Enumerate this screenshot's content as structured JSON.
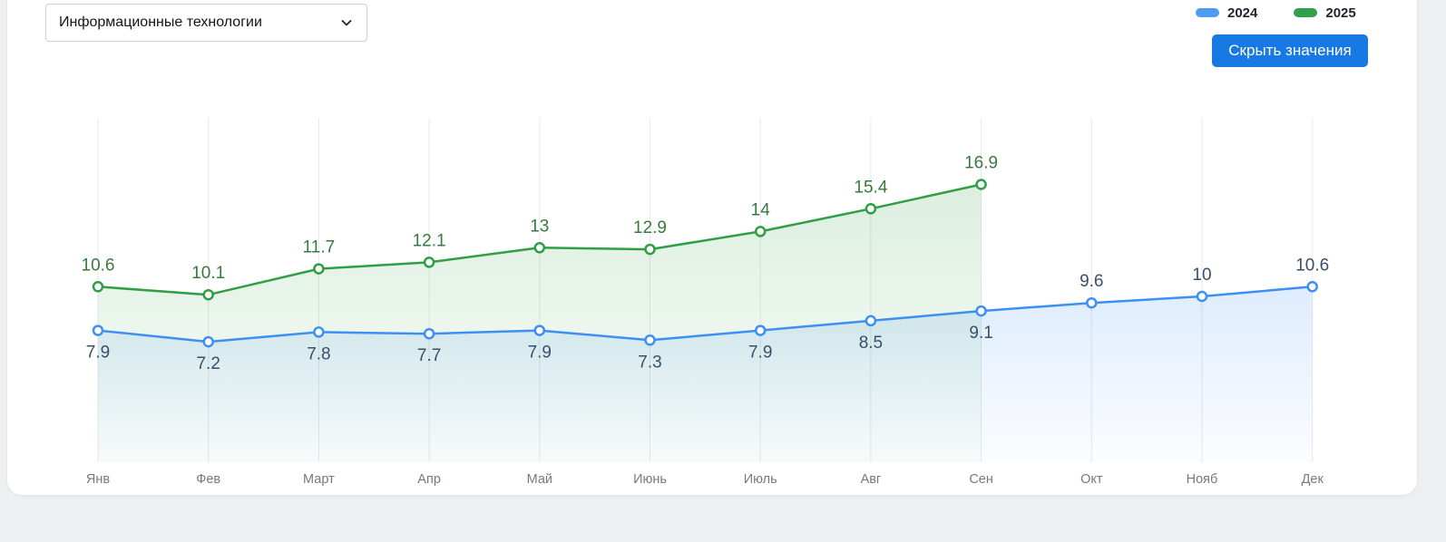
{
  "controls": {
    "category_select": {
      "value": "Информационные технологии"
    },
    "hide_values_button": "Скрыть значения"
  },
  "legend": [
    {
      "label": "2024",
      "color": "#4a9df2"
    },
    {
      "label": "2025",
      "color": "#31a04a"
    }
  ],
  "chart_data": {
    "type": "line",
    "title": "",
    "xlabel": "",
    "ylabel": "",
    "categories": [
      "Янв",
      "Фев",
      "Март",
      "Апр",
      "Май",
      "Июнь",
      "Июль",
      "Авг",
      "Сен",
      "Окт",
      "Нояб",
      "Дек"
    ],
    "series": [
      {
        "name": "2024",
        "color": "#3d8ff2",
        "label_color": "#37516b",
        "labels_above_from": 9,
        "values": [
          7.9,
          7.2,
          7.8,
          7.7,
          7.9,
          7.3,
          7.9,
          8.5,
          9.1,
          9.6,
          10,
          10.6
        ]
      },
      {
        "name": "2025",
        "color": "#2f9e44",
        "label_color": "#367a3f",
        "labels_above_from": 0,
        "values": [
          10.6,
          10.1,
          11.7,
          12.1,
          13,
          12.9,
          14,
          15.4,
          16.9
        ]
      }
    ],
    "ylim": [
      0,
      21
    ],
    "grid": "vertical-only",
    "legend_position": "top-right",
    "axis_label_color": "#757a80"
  }
}
